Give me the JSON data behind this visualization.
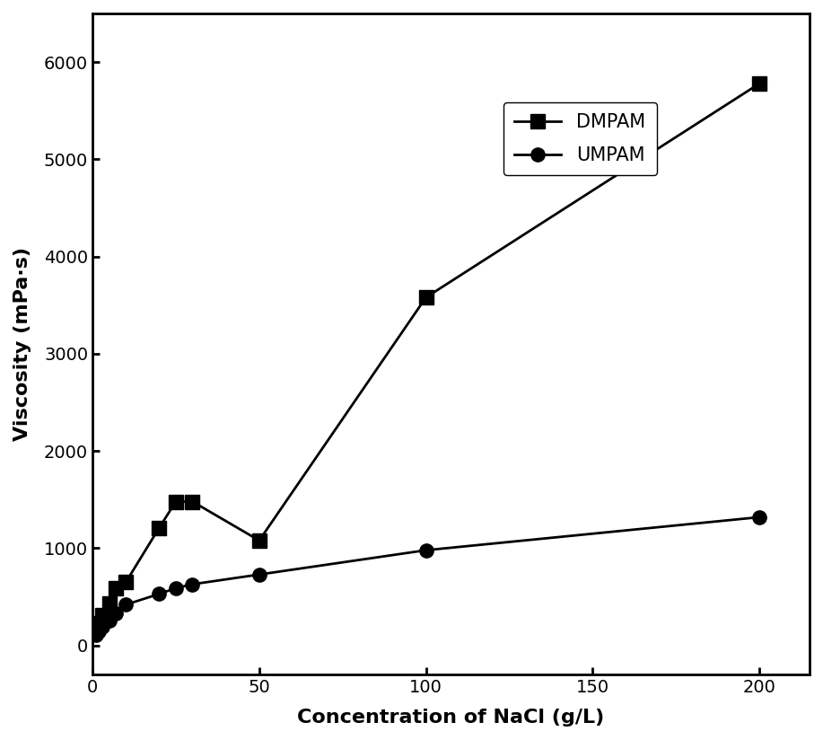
{
  "DMPAM_x": [
    1,
    2,
    3,
    5,
    7,
    10,
    20,
    25,
    30,
    50,
    100,
    200
  ],
  "DMPAM_y": [
    160,
    230,
    310,
    430,
    590,
    650,
    1210,
    1480,
    1480,
    1080,
    3580,
    5780
  ],
  "UMPAM_x": [
    1,
    2,
    3,
    5,
    7,
    10,
    20,
    25,
    30,
    50,
    100,
    200
  ],
  "UMPAM_y": [
    110,
    150,
    190,
    260,
    330,
    420,
    530,
    590,
    630,
    730,
    980,
    1320
  ],
  "xlabel": "Concentration of NaCl (g/L)",
  "ylabel": "Viscosity (mPa·s)",
  "xlim": [
    0,
    215
  ],
  "ylim": [
    -300,
    6500
  ],
  "yticks": [
    0,
    1000,
    2000,
    3000,
    4000,
    5000,
    6000
  ],
  "xticks": [
    0,
    50,
    100,
    150,
    200
  ],
  "legend_labels": [
    "DMPAM",
    "UMPAM"
  ],
  "line_color": "#000000",
  "marker_square": "s",
  "marker_circle": "o",
  "markersize": 11,
  "linewidth": 2.0,
  "background_color": "#ffffff"
}
